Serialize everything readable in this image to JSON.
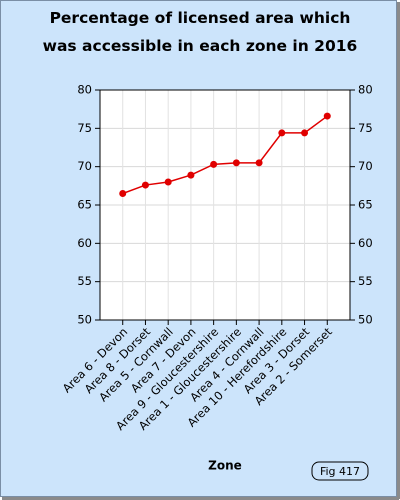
{
  "chart_data": {
    "type": "line",
    "title": "Percentage of licensed area which was accessible in each zone in 2016",
    "x_label": "Zone",
    "figure_label": "Fig 417",
    "categories": [
      "Area 6 - Devon",
      "Area 8 - Dorset",
      "Area 5 - Cornwall",
      "Area 7 - Devon",
      "Area 9 - Gloucestershire",
      "Area 1 - Gloucestershire",
      "Area 4 - Cornwall",
      "Area 10 - Herefordshire",
      "Area 3 - Dorset",
      "Area 2 - Somerset"
    ],
    "values": [
      66.5,
      67.6,
      68.0,
      68.9,
      70.3,
      70.5,
      70.5,
      74.4,
      74.4,
      76.6
    ],
    "color": "#e00000",
    "ylim": [
      50,
      80
    ],
    "yticks": [
      50,
      55,
      60,
      65,
      70,
      75,
      80
    ],
    "grid": true
  }
}
